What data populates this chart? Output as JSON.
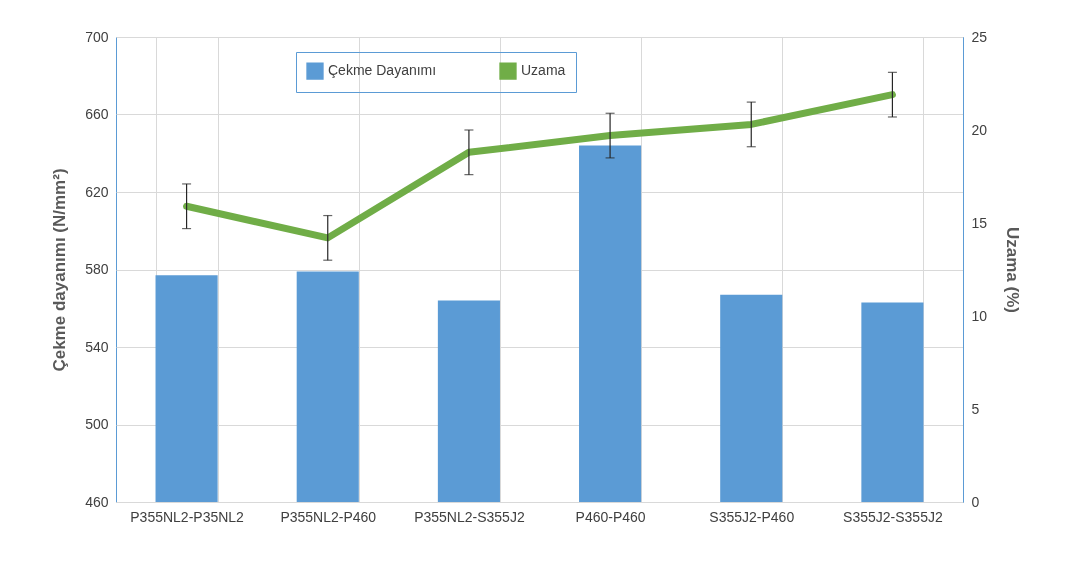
{
  "chart_data": {
    "type": "bar",
    "xlabel": null,
    "ylabel": "Çekme dayanımı (N/mm²)",
    "y2label": "Uzama (%)",
    "categories": [
      "P355NL2-P35NL2",
      "P355NL2-P460",
      "P355NL2-S355J2",
      "P460-P460",
      "S355J2-P460",
      "S355J2-S355J2"
    ],
    "series": [
      {
        "name": "Çekme Dayanımı",
        "color": "#5b9bd5",
        "values": [
          577,
          579,
          564,
          644,
          567,
          563
        ]
      },
      {
        "name": "Uzama",
        "type": "line",
        "axis": "y2",
        "color": "#70ad47",
        "values": [
          15.9,
          14.2,
          18.8,
          19.7,
          20.3,
          21.9
        ],
        "errors": [
          1.2,
          1.2,
          1.2,
          1.2,
          1.2,
          1.2
        ]
      }
    ],
    "ylim": [
      460,
      700
    ],
    "yticks": [
      460,
      500,
      540,
      580,
      620,
      660,
      700
    ],
    "y2lim": [
      0,
      25
    ],
    "y2ticks": [
      0,
      5,
      10,
      15,
      20,
      25
    ],
    "grid": true,
    "legend": "top"
  }
}
